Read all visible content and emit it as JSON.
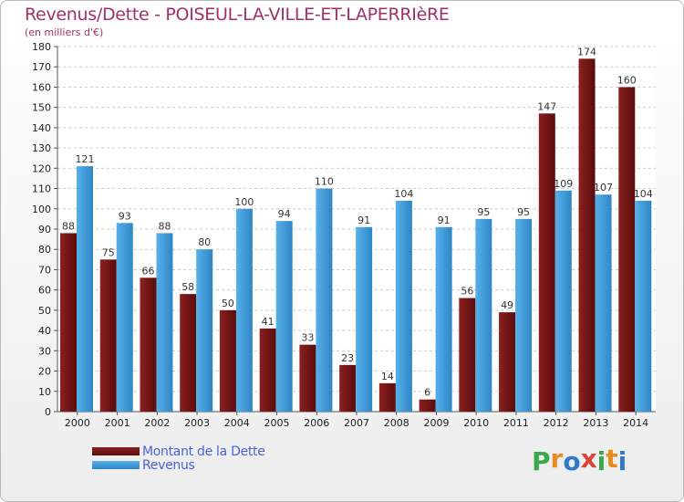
{
  "title": "Revenus/Dette - POISEUL-LA-VILLE-ET-LAPERRIèRE",
  "subtitle": "(en milliers d'€)",
  "logo": {
    "text": [
      "P",
      "r",
      "o",
      "x",
      "i",
      "t",
      "i"
    ],
    "colors": [
      "#3aa84a",
      "#e88b1f",
      "#2f79c8",
      "#d94536",
      "#3aa84a",
      "#e88b1f",
      "#2f79c8"
    ]
  },
  "colors": {
    "debt": "#8b2020",
    "debt_dark": "#5a0c0c",
    "revenue": "#56b0e8",
    "revenue_dark": "#2f86c6",
    "axis_text": "#222222",
    "grid": "#cccccc"
  },
  "chart_data": {
    "type": "bar",
    "categories": [
      "2000",
      "2001",
      "2002",
      "2003",
      "2004",
      "2005",
      "2006",
      "2007",
      "2008",
      "2009",
      "2010",
      "2011",
      "2012",
      "2013",
      "2014"
    ],
    "series": [
      {
        "name": "Montant de la Dette",
        "values": [
          88,
          75,
          66,
          58,
          50,
          41,
          33,
          23,
          14,
          6,
          56,
          49,
          147,
          174,
          160
        ]
      },
      {
        "name": "Revenus",
        "values": [
          121,
          93,
          88,
          80,
          100,
          94,
          110,
          91,
          104,
          91,
          95,
          95,
          109,
          107,
          104
        ]
      }
    ],
    "yticks": [
      "0",
      "10",
      "20",
      "30",
      "40",
      "50",
      "60",
      "70",
      "80",
      "90",
      "100",
      "110",
      "120",
      "130",
      "140",
      "150",
      "160",
      "170",
      "180"
    ],
    "ylim": [
      0,
      180
    ],
    "grid": true,
    "legend": "bottom-left"
  }
}
